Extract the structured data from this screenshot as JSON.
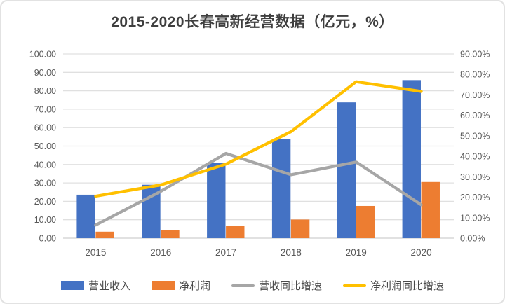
{
  "chart_data": {
    "type": "combo-bar-line",
    "title": "2015-2020长春高新经营数据（亿元，%）",
    "categories": [
      "2015",
      "2016",
      "2017",
      "2018",
      "2019",
      "2020"
    ],
    "series": [
      {
        "name": "营业收入",
        "type": "bar",
        "axis": "left",
        "color": "#4472C4",
        "values": [
          23.6,
          29.0,
          41.0,
          53.7,
          73.7,
          85.8
        ]
      },
      {
        "name": "净利润",
        "type": "bar",
        "axis": "left",
        "color": "#ED7D31",
        "values": [
          3.5,
          4.5,
          6.6,
          10.1,
          17.5,
          30.5
        ]
      },
      {
        "name": "营收同比增速",
        "type": "line",
        "axis": "right",
        "color": "#A6A6A6",
        "values": [
          6.4,
          22.9,
          41.4,
          31.0,
          37.2,
          16.3
        ]
      },
      {
        "name": "净利润同比增速",
        "type": "line",
        "axis": "right",
        "color": "#FFC000",
        "values": [
          20.5,
          26.0,
          36.2,
          52.0,
          76.4,
          71.7
        ]
      }
    ],
    "left_axis": {
      "min": 0,
      "max": 100,
      "step": 10,
      "tick_labels": [
        "0.00",
        "10.00",
        "20.00",
        "30.00",
        "40.00",
        "50.00",
        "60.00",
        "70.00",
        "80.00",
        "90.00",
        "100.00"
      ]
    },
    "right_axis": {
      "min": 0,
      "max": 90,
      "step": 10,
      "unit": "%",
      "tick_labels": [
        "0.00%",
        "10.00%",
        "20.00%",
        "30.00%",
        "40.00%",
        "50.00%",
        "60.00%",
        "70.00%",
        "80.00%",
        "90.00%"
      ]
    },
    "grid": true,
    "legend_position": "bottom",
    "colors": {
      "grid_line": "#e0e0e0",
      "axis_line": "#cfcfcf",
      "axis_text": "#595959",
      "title_text": "#3f3f3f"
    }
  }
}
